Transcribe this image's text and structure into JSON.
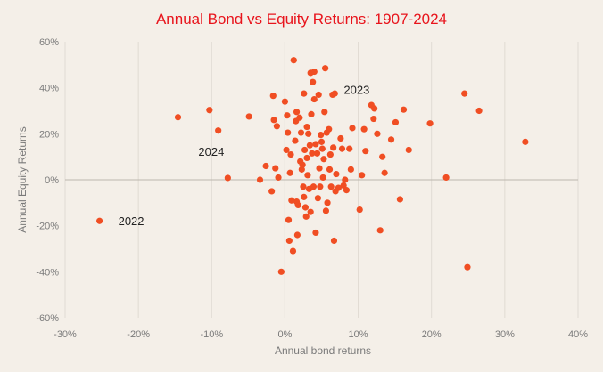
{
  "chart_data": {
    "type": "scatter",
    "title": "Annual Bond vs Equity Returns: 1907-2024",
    "xlabel": "Annual bond returns",
    "ylabel": "Annual Equity Returns",
    "xlim": [
      -30,
      40
    ],
    "ylim": [
      -60,
      60
    ],
    "x_ticks": [
      "-30%",
      "-20%",
      "-10%",
      "0%",
      "10%",
      "20%",
      "30%",
      "40%"
    ],
    "y_ticks": [
      "60%",
      "40%",
      "20%",
      "0%",
      "-20%",
      "-40%",
      "-60%"
    ],
    "x_tick_values": [
      -30,
      -20,
      -10,
      0,
      10,
      20,
      30,
      40
    ],
    "y_tick_values": [
      60,
      40,
      20,
      0,
      -20,
      -40,
      -60
    ],
    "grid": "vertical",
    "colors": {
      "marker": "#f04e23",
      "title": "#e8141c",
      "background": "#f4efe8"
    },
    "annotations": [
      {
        "text": "2022",
        "x": -25.3,
        "y": -17.9
      },
      {
        "text": "2024",
        "x": -7.8,
        "y": 0.8
      },
      {
        "text": "2023",
        "x": 11.8,
        "y": 32.7
      }
    ],
    "points": [
      [
        -25.3,
        -17.9
      ],
      [
        -14.6,
        27.2
      ],
      [
        -10.3,
        30.3
      ],
      [
        -9.1,
        21.4
      ],
      [
        -7.8,
        0.8
      ],
      [
        -4.9,
        27.5
      ],
      [
        -3.4,
        0.0
      ],
      [
        -2.6,
        6.0
      ],
      [
        -1.8,
        -5.0
      ],
      [
        -1.6,
        36.5
      ],
      [
        -1.5,
        26.0
      ],
      [
        -1.3,
        5.0
      ],
      [
        -1.1,
        23.3
      ],
      [
        -0.9,
        1.0
      ],
      [
        -0.5,
        -40.0
      ],
      [
        0.0,
        34.0
      ],
      [
        0.2,
        13.0
      ],
      [
        0.3,
        28.0
      ],
      [
        0.4,
        20.5
      ],
      [
        0.5,
        -17.5
      ],
      [
        0.6,
        -26.5
      ],
      [
        0.7,
        3.0
      ],
      [
        0.8,
        11.0
      ],
      [
        0.9,
        -9.0
      ],
      [
        1.1,
        -31.0
      ],
      [
        1.2,
        52.0
      ],
      [
        1.4,
        17.0
      ],
      [
        1.5,
        25.5
      ],
      [
        1.6,
        29.5
      ],
      [
        1.6,
        -9.5
      ],
      [
        1.7,
        -24.0
      ],
      [
        1.8,
        -11.0
      ],
      [
        2.0,
        27.0
      ],
      [
        2.1,
        8.0
      ],
      [
        2.2,
        20.5
      ],
      [
        2.3,
        4.5
      ],
      [
        2.4,
        6.5
      ],
      [
        2.5,
        -3.0
      ],
      [
        2.6,
        37.5
      ],
      [
        2.6,
        -7.5
      ],
      [
        2.7,
        13.0
      ],
      [
        2.8,
        -12.0
      ],
      [
        2.9,
        -16.0
      ],
      [
        3.0,
        9.5
      ],
      [
        3.0,
        23.0
      ],
      [
        3.1,
        2.0
      ],
      [
        3.2,
        20.0
      ],
      [
        3.3,
        -4.0
      ],
      [
        3.4,
        15.0
      ],
      [
        3.5,
        46.5
      ],
      [
        3.5,
        -14.0
      ],
      [
        3.6,
        28.5
      ],
      [
        3.7,
        11.5
      ],
      [
        3.8,
        42.5
      ],
      [
        3.9,
        -3.0
      ],
      [
        4.0,
        47.0
      ],
      [
        4.0,
        35.0
      ],
      [
        4.2,
        15.5
      ],
      [
        4.2,
        -23.0
      ],
      [
        4.4,
        11.5
      ],
      [
        4.5,
        -8.0
      ],
      [
        4.6,
        37.0
      ],
      [
        4.7,
        5.0
      ],
      [
        4.8,
        -3.0
      ],
      [
        4.9,
        19.5
      ],
      [
        5.0,
        16.5
      ],
      [
        5.1,
        13.5
      ],
      [
        5.2,
        1.0
      ],
      [
        5.3,
        9.0
      ],
      [
        5.4,
        29.5
      ],
      [
        5.5,
        48.5
      ],
      [
        5.6,
        -13.5
      ],
      [
        5.7,
        20.5
      ],
      [
        5.8,
        -10.0
      ],
      [
        6.0,
        22.0
      ],
      [
        6.1,
        4.5
      ],
      [
        6.2,
        11.0
      ],
      [
        6.3,
        -3.0
      ],
      [
        6.5,
        37.0
      ],
      [
        6.6,
        14.0
      ],
      [
        6.7,
        -26.5
      ],
      [
        6.8,
        37.5
      ],
      [
        6.9,
        -5.0
      ],
      [
        7.0,
        2.5
      ],
      [
        7.3,
        -3.5
      ],
      [
        7.6,
        18.0
      ],
      [
        7.8,
        13.5
      ],
      [
        8.0,
        -2.5
      ],
      [
        8.2,
        0.0
      ],
      [
        8.4,
        -4.5
      ],
      [
        8.8,
        13.5
      ],
      [
        9.0,
        4.5
      ],
      [
        9.2,
        22.5
      ],
      [
        10.2,
        -13.0
      ],
      [
        10.5,
        2.0
      ],
      [
        10.8,
        22.0
      ],
      [
        11.0,
        12.5
      ],
      [
        11.8,
        32.5
      ],
      [
        12.1,
        26.5
      ],
      [
        12.2,
        31.0
      ],
      [
        12.6,
        20.0
      ],
      [
        13.0,
        -22.0
      ],
      [
        13.3,
        10.0
      ],
      [
        13.6,
        3.0
      ],
      [
        14.5,
        17.5
      ],
      [
        15.1,
        25.0
      ],
      [
        15.7,
        -8.5
      ],
      [
        16.2,
        30.5
      ],
      [
        16.9,
        13.0
      ],
      [
        19.8,
        24.5
      ],
      [
        22.0,
        1.0
      ],
      [
        24.5,
        37.5
      ],
      [
        24.9,
        -38.0
      ],
      [
        26.5,
        30.0
      ],
      [
        32.8,
        16.5
      ]
    ]
  }
}
